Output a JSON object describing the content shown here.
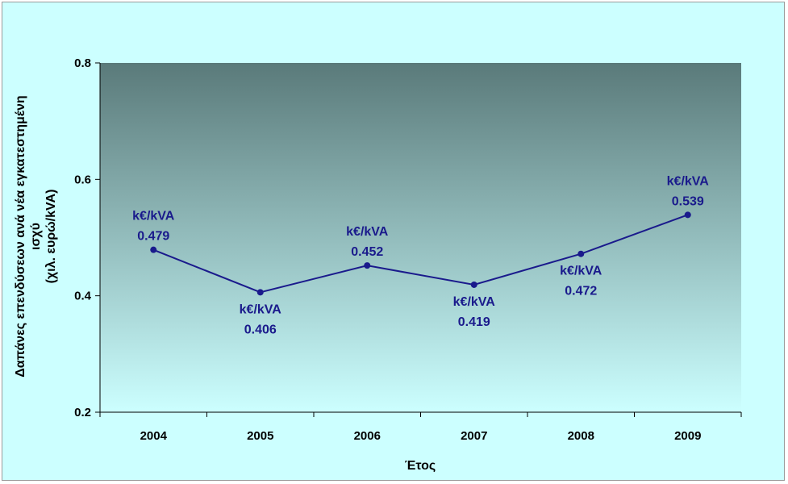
{
  "chart_data": {
    "type": "line",
    "categories": [
      "2004",
      "2005",
      "2006",
      "2007",
      "2008",
      "2009"
    ],
    "series": [
      {
        "values": [
          0.479,
          0.406,
          0.452,
          0.419,
          0.472,
          0.539
        ]
      }
    ],
    "data_labels": [
      {
        "unit": "k€/kVA",
        "value": "0.479",
        "placement": "above"
      },
      {
        "unit": "k€/kVA",
        "value": "0.406",
        "placement": "below"
      },
      {
        "unit": "k€/kVA",
        "value": "0.452",
        "placement": "above"
      },
      {
        "unit": "k€/kVA",
        "value": "0.419",
        "placement": "below"
      },
      {
        "unit": "k€/kVA",
        "value": "0.472",
        "placement": "below"
      },
      {
        "unit": "k€/kVA",
        "value": "0.539",
        "placement": "above"
      }
    ],
    "ylim": [
      0.2,
      0.8
    ],
    "y_ticks": [
      "0.2",
      "0.4",
      "0.6",
      "0.8"
    ],
    "xlabel": "Έτος",
    "ylabel_lines": [
      "Δαπάνες επενδύσεων ανά νέα εγκατεστημένη",
      "ισχύ",
      "(χιλ. ευρώ/kVA)"
    ],
    "grid": false,
    "legend": "none",
    "colors": {
      "series": "#1a1a8c",
      "data_labels": "#1a1a8c",
      "frame_background": "#ccffff",
      "plot_gradient_top": "#5a7a7a",
      "plot_gradient_bottom": "#ccffff"
    }
  }
}
